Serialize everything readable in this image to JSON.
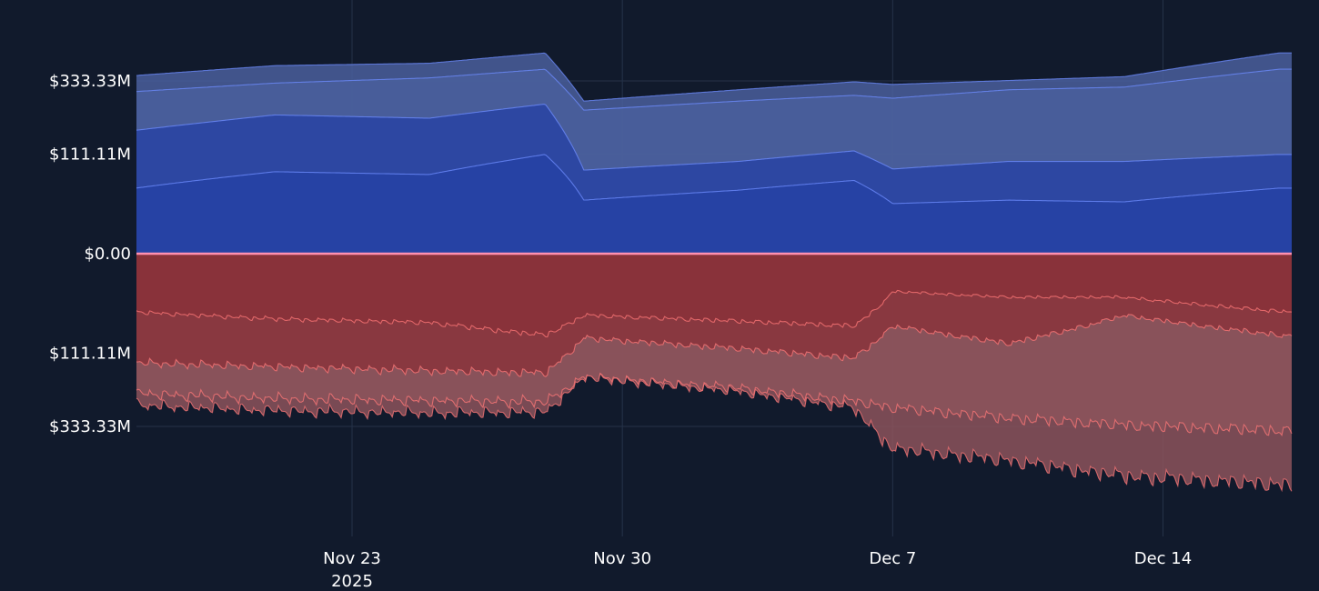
{
  "chart_data": {
    "type": "area",
    "title": "",
    "xlabel": "",
    "ylabel": "",
    "x_ticks": [
      {
        "date": "2025-11-23",
        "label": "Nov 23",
        "sublabel": "2025"
      },
      {
        "date": "2025-11-30",
        "label": "Nov 30",
        "sublabel": ""
      },
      {
        "date": "2025-12-07",
        "label": "Dec 7",
        "sublabel": ""
      },
      {
        "date": "2025-12-14",
        "label": "Dec 14",
        "sublabel": ""
      }
    ],
    "xlim": [
      "2025-11-17T10:00",
      "2025-12-17T08:00"
    ],
    "y_scale": "symmetric-power",
    "y_ticks": [
      {
        "value": 333333333,
        "label": "$333.33M"
      },
      {
        "value": 111111111,
        "label": "$111.11M"
      },
      {
        "value": 0,
        "label": "$0.00"
      },
      {
        "value": -111111111,
        "label": "$111.11M"
      },
      {
        "value": -333333333,
        "label": "$333.33M"
      }
    ],
    "grid": true,
    "legend": "none",
    "colors": {
      "background": "#111a2c",
      "grid": "#263349",
      "axis_text": "#ffffff",
      "zero_line": "#ff8fb0",
      "positive_fill_inner": "#2440a4",
      "positive_fill_outer": "#4a5f9c",
      "positive_line": "#6e8cff",
      "negative_fill_inner": "#8a3038",
      "negative_fill_outer": "#8c535c",
      "negative_line": "#ff7878"
    },
    "positive_series": [
      {
        "x": [
          "2025-11-17",
          "2025-11-21",
          "2025-11-25",
          "2025-11-28",
          "2025-11-29",
          "2025-12-03",
          "2025-12-06",
          "2025-12-07",
          "2025-12-10",
          "2025-12-13",
          "2025-12-17"
        ],
        "values": [
          350000000,
          395000000,
          405000000,
          450000000,
          260000000,
          300000000,
          330000000,
          320000000,
          335000000,
          350000000,
          450000000
        ]
      },
      {
        "x": [
          "2025-11-17",
          "2025-11-21",
          "2025-11-25",
          "2025-11-28",
          "2025-11-29",
          "2025-12-03",
          "2025-12-06",
          "2025-12-07",
          "2025-12-10",
          "2025-12-13",
          "2025-12-17"
        ],
        "values": [
          290000000,
          325000000,
          345000000,
          380000000,
          230000000,
          260000000,
          280000000,
          270000000,
          300000000,
          310000000,
          380000000
        ]
      },
      {
        "x": [
          "2025-11-17",
          "2025-11-21",
          "2025-11-25",
          "2025-11-28",
          "2025-11-29",
          "2025-12-03",
          "2025-12-06",
          "2025-12-07",
          "2025-12-10",
          "2025-12-13",
          "2025-12-17"
        ],
        "values": [
          165000000,
          215000000,
          205000000,
          250000000,
          78000000,
          95000000,
          118000000,
          80000000,
          95000000,
          95000000,
          110000000
        ]
      },
      {
        "x": [
          "2025-11-17",
          "2025-11-21",
          "2025-11-25",
          "2025-11-28",
          "2025-11-29",
          "2025-12-03",
          "2025-12-06",
          "2025-12-07",
          "2025-12-10",
          "2025-12-13",
          "2025-12-17"
        ],
        "values": [
          45000000,
          75000000,
          70000000,
          110000000,
          32000000,
          45000000,
          60000000,
          28000000,
          32000000,
          30000000,
          48000000
        ]
      }
    ],
    "negative_series": [
      {
        "x": [
          "2025-11-17",
          "2025-11-21",
          "2025-11-25",
          "2025-11-28",
          "2025-11-29",
          "2025-12-03",
          "2025-12-06",
          "2025-12-07",
          "2025-12-10",
          "2025-12-13",
          "2025-12-17"
        ],
        "values": [
          -35000000,
          -45000000,
          -50000000,
          -70000000,
          -40000000,
          -48000000,
          -55000000,
          -15000000,
          -20000000,
          -20000000,
          -35000000
        ]
      },
      {
        "x": [
          "2025-11-17",
          "2025-11-21",
          "2025-11-25",
          "2025-11-28",
          "2025-11-29",
          "2025-12-03",
          "2025-12-06",
          "2025-12-07",
          "2025-12-10",
          "2025-12-13",
          "2025-12-17"
        ],
        "values": [
          -125000000,
          -135000000,
          -145000000,
          -150000000,
          -75000000,
          -95000000,
          -115000000,
          -55000000,
          -85000000,
          -40000000,
          -70000000
        ]
      },
      {
        "x": [
          "2025-11-17",
          "2025-11-21",
          "2025-11-25",
          "2025-11-28",
          "2025-11-29",
          "2025-12-03",
          "2025-12-06",
          "2025-12-07",
          "2025-12-10",
          "2025-12-13",
          "2025-12-17"
        ],
        "values": [
          -205000000,
          -222000000,
          -228000000,
          -232000000,
          -160000000,
          -190000000,
          -230000000,
          -250000000,
          -285000000,
          -310000000,
          -330000000
        ]
      },
      {
        "x": [
          "2025-11-17",
          "2025-11-21",
          "2025-11-25",
          "2025-11-28",
          "2025-11-29",
          "2025-12-03",
          "2025-12-06",
          "2025-12-07",
          "2025-12-10",
          "2025-12-13",
          "2025-12-17"
        ],
        "values": [
          -240000000,
          -260000000,
          -268000000,
          -265000000,
          -160000000,
          -200000000,
          -250000000,
          -400000000,
          -450000000,
          -520000000,
          -560000000
        ]
      }
    ]
  }
}
